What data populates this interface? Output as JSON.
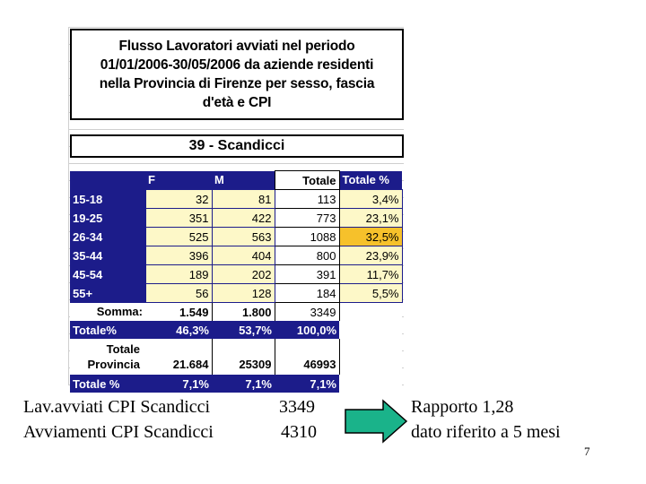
{
  "table": {
    "title": "Flusso Lavoratori avviati nel periodo\n01/01/2006-30/05/2006 da aziende residenti\nnella Provincia di Firenze per sesso, fascia\nd'età e CPI",
    "subtitle": "39 - Scandicci",
    "headers": [
      "F",
      "M",
      "Totale",
      "Totale %"
    ],
    "rows": [
      {
        "label": "15-18",
        "f": "32",
        "m": "81",
        "tot": "113",
        "pct": "3,4%"
      },
      {
        "label": "19-25",
        "f": "351",
        "m": "422",
        "tot": "773",
        "pct": "23,1%"
      },
      {
        "label": "26-34",
        "f": "525",
        "m": "563",
        "tot": "1088",
        "pct": "32,5%"
      },
      {
        "label": "35-44",
        "f": "396",
        "m": "404",
        "tot": "800",
        "pct": "23,9%"
      },
      {
        "label": "45-54",
        "f": "189",
        "m": "202",
        "tot": "391",
        "pct": "11,7%"
      },
      {
        "label": "55+",
        "f": "56",
        "m": "128",
        "tot": "184",
        "pct": "5,5%"
      }
    ],
    "somma": {
      "label": "Somma:",
      "f": "1.549",
      "m": "1.800",
      "tot": "3349"
    },
    "totale_pct": {
      "label": "Totale%",
      "f": "46,3%",
      "m": "53,7%",
      "tot": "100,0%"
    },
    "totale_provincia": {
      "label_line1": "Totale",
      "label_line2": "Provincia",
      "f": "21.684",
      "m": "25309",
      "tot": "46993"
    },
    "totale_pct2": {
      "label": "Totale %",
      "f": "7,1%",
      "m": "7,1%",
      "tot": "7,1%"
    }
  },
  "footer": {
    "line1_label": "Lav.avviati  CPI Scandicci",
    "line1_value": "3349",
    "line2_label": "Avviamenti CPI Scandicci",
    "line2_value": "4310",
    "ratio_line1": "Rapporto 1,28",
    "ratio_line2": "dato riferito  a 5 mesi",
    "page_number": "7"
  },
  "colors": {
    "header_blue": "#1c1c8a",
    "cell_yellow": "#fdf8c8",
    "highlight": "#f6c12b",
    "arrow_green": "#1ab38a"
  }
}
